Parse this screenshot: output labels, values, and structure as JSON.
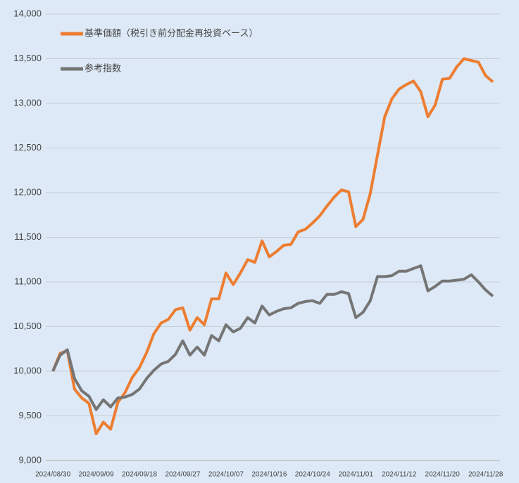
{
  "chart_data": {
    "type": "line",
    "categories": [
      "2024/08/30",
      null,
      null,
      null,
      null,
      null,
      "2024/09/09",
      null,
      null,
      null,
      null,
      null,
      "2024/09/18",
      null,
      null,
      null,
      null,
      null,
      "2024/09/27",
      null,
      null,
      null,
      null,
      null,
      "2024/10/07",
      null,
      null,
      null,
      null,
      null,
      "2024/10/16",
      null,
      null,
      null,
      null,
      null,
      "2024/10/24",
      null,
      null,
      null,
      null,
      null,
      "2024/11/01",
      null,
      null,
      null,
      null,
      null,
      "2024/11/12",
      null,
      null,
      null,
      null,
      null,
      "2024/11/20",
      null,
      null,
      null,
      null,
      null,
      "2024/11/28",
      null
    ],
    "series": [
      {
        "name": "基準価額（税引き前分配金再投資ベース）",
        "color": "#ed7d31",
        "values": [
          10000,
          10200,
          10230,
          9800,
          9700,
          9640,
          9300,
          9430,
          9350,
          9650,
          9760,
          9930,
          10040,
          10210,
          10420,
          10540,
          10580,
          10690,
          10710,
          10460,
          10600,
          10520,
          10810,
          10810,
          11100,
          10970,
          11100,
          11250,
          11220,
          11460,
          11280,
          11340,
          11410,
          11420,
          11560,
          11590,
          11660,
          11740,
          11850,
          11950,
          12030,
          12010,
          11620,
          11700,
          11990,
          12420,
          12850,
          13050,
          13160,
          13210,
          13250,
          13130,
          12850,
          12980,
          13270,
          13280,
          13410,
          13500,
          13480,
          13460,
          13310,
          13240
        ]
      },
      {
        "name": "参考指数",
        "color": "#757575",
        "values": [
          10000,
          10180,
          10240,
          9920,
          9780,
          9720,
          9570,
          9680,
          9600,
          9700,
          9710,
          9740,
          9800,
          9920,
          10010,
          10080,
          10110,
          10190,
          10340,
          10180,
          10270,
          10180,
          10400,
          10340,
          10520,
          10440,
          10480,
          10600,
          10540,
          10730,
          10630,
          10670,
          10700,
          10710,
          10760,
          10780,
          10790,
          10760,
          10860,
          10860,
          10890,
          10870,
          10600,
          10660,
          10790,
          11060,
          11060,
          11070,
          11120,
          11120,
          11150,
          11180,
          10900,
          10950,
          11010,
          11010,
          11020,
          11030,
          11080,
          11000,
          10910,
          10840
        ]
      }
    ],
    "ylim": [
      9000,
      14000
    ],
    "yticks": [
      {
        "value": 9000,
        "label": "9,000"
      },
      {
        "value": 9500,
        "label": "9,500"
      },
      {
        "value": 10000,
        "label": "10,000"
      },
      {
        "value": 10500,
        "label": "10,500"
      },
      {
        "value": 11000,
        "label": "11,000"
      },
      {
        "value": 11500,
        "label": "11,500"
      },
      {
        "value": 12000,
        "label": "12,000"
      },
      {
        "value": 12500,
        "label": "12,500"
      },
      {
        "value": 13000,
        "label": "13,000"
      },
      {
        "value": 13500,
        "label": "13,500"
      },
      {
        "value": 14000,
        "label": "14,000"
      }
    ],
    "grid": true,
    "legend": "top-left"
  }
}
